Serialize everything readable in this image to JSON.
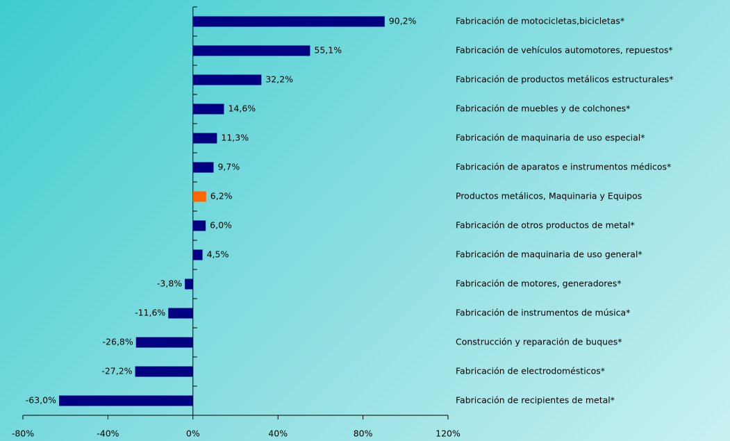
{
  "chart_data": {
    "type": "hbar",
    "categories": [
      "Fabricación de motocicletas,bicicletas*",
      "Fabricación de vehículos automotores, repuestos*",
      "Fabricación de productos metálicos estructurales*",
      "Fabricación de muebles y de colchones*",
      "Fabricación de maquinaria de uso especial*",
      "Fabricación de aparatos e instrumentos médicos*",
      "Productos metálicos, Maquinaria y Equipos",
      "Fabricación de otros productos de metal*",
      "Fabricación de maquinaria de uso general*",
      "Fabricación de motores, generadores*",
      "Fabricación de instrumentos de música*",
      "Construcción y reparación de buques*",
      "Fabricación de electrodomésticos*",
      "Fabricación de recipientes de metal*"
    ],
    "values": [
      90.2,
      55.1,
      32.2,
      14.6,
      11.3,
      9.7,
      6.2,
      6.0,
      4.5,
      -3.8,
      -11.6,
      -26.8,
      -27.2,
      -63.0
    ],
    "value_labels": [
      "90,2%",
      "55,1%",
      "32,2%",
      "14,6%",
      "11,3%",
      "9,7%",
      "6,2%",
      "6,0%",
      "4,5%",
      "-3,8%",
      "-11,6%",
      "-26,8%",
      "-27,2%",
      "-63,0%"
    ],
    "colors": [
      "#000080",
      "#000080",
      "#000080",
      "#000080",
      "#000080",
      "#000080",
      "#ff6600",
      "#000080",
      "#000080",
      "#000080",
      "#000080",
      "#000080",
      "#000080",
      "#000080"
    ],
    "xlim": [
      -80,
      120
    ],
    "xticks": [
      {
        "value": -80,
        "label": "-80%"
      },
      {
        "value": -40,
        "label": "-40%"
      },
      {
        "value": 0,
        "label": "0%"
      },
      {
        "value": 40,
        "label": "40%"
      },
      {
        "value": 80,
        "label": "80%"
      },
      {
        "value": 120,
        "label": "120%"
      }
    ]
  }
}
